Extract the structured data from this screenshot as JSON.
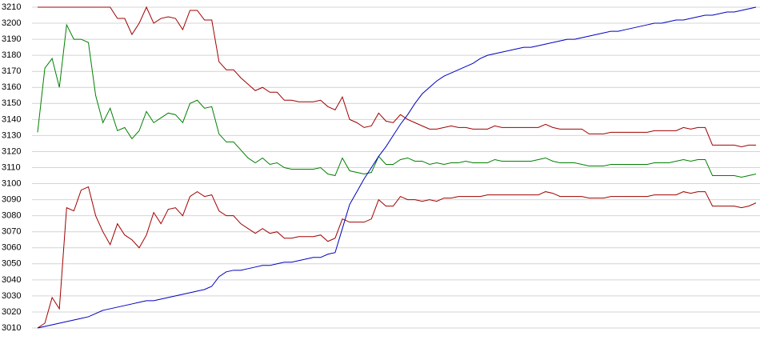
{
  "chart_data": {
    "type": "line",
    "ylim": [
      3010,
      3210
    ],
    "yticks": [
      3010,
      3020,
      3030,
      3040,
      3050,
      3060,
      3070,
      3080,
      3090,
      3100,
      3110,
      3120,
      3130,
      3140,
      3150,
      3160,
      3170,
      3180,
      3190,
      3200,
      3210
    ],
    "grid": true,
    "series": [
      {
        "color": "#a00000",
        "values": [
          3210,
          3210,
          3210,
          3210,
          3210,
          3210,
          3210,
          3210,
          3210,
          3210,
          3210,
          3203,
          3203,
          3193,
          3200,
          3210,
          3200,
          3203,
          3204,
          3203,
          3196,
          3208,
          3208,
          3202,
          3202,
          3176,
          3171,
          3171,
          3166,
          3162,
          3158,
          3160,
          3157,
          3157,
          3152,
          3152,
          3151,
          3151,
          3151,
          3152,
          3148,
          3146,
          3154,
          3140,
          3138,
          3135,
          3136,
          3144,
          3139,
          3138,
          3143,
          3140,
          3138,
          3136,
          3134,
          3134,
          3135,
          3136,
          3135,
          3135,
          3134,
          3134,
          3134,
          3136,
          3135,
          3135,
          3135,
          3135,
          3135,
          3135,
          3137,
          3135,
          3134,
          3134,
          3134,
          3134,
          3131,
          3131,
          3131,
          3132,
          3132,
          3132,
          3132,
          3132,
          3132,
          3133,
          3133,
          3133,
          3133,
          3135,
          3134,
          3135,
          3135,
          3124,
          3124,
          3124,
          3124,
          3123,
          3124,
          3124
        ]
      },
      {
        "color": "#008000",
        "values": [
          3132,
          3172,
          3178,
          3160,
          3199,
          3190,
          3190,
          3188,
          3155,
          3138,
          3147,
          3133,
          3135,
          3128,
          3133,
          3145,
          3138,
          3141,
          3144,
          3143,
          3138,
          3150,
          3152,
          3147,
          3148,
          3131,
          3126,
          3126,
          3121,
          3116,
          3113,
          3116,
          3112,
          3113,
          3110,
          3109,
          3109,
          3109,
          3109,
          3110,
          3106,
          3105,
          3116,
          3108,
          3107,
          3106,
          3107,
          3117,
          3112,
          3112,
          3115,
          3116,
          3114,
          3114,
          3112,
          3113,
          3112,
          3113,
          3113,
          3114,
          3113,
          3113,
          3113,
          3115,
          3114,
          3114,
          3114,
          3114,
          3114,
          3115,
          3116,
          3114,
          3113,
          3113,
          3113,
          3112,
          3111,
          3111,
          3111,
          3112,
          3112,
          3112,
          3112,
          3112,
          3112,
          3113,
          3113,
          3113,
          3114,
          3115,
          3114,
          3115,
          3115,
          3105,
          3105,
          3105,
          3105,
          3104,
          3105,
          3106
        ]
      },
      {
        "color": "#a00000",
        "values": [
          3010,
          3013,
          3029,
          3022,
          3085,
          3083,
          3096,
          3098,
          3080,
          3070,
          3062,
          3075,
          3068,
          3065,
          3060,
          3068,
          3082,
          3075,
          3084,
          3085,
          3080,
          3092,
          3095,
          3092,
          3093,
          3083,
          3080,
          3080,
          3075,
          3072,
          3069,
          3072,
          3069,
          3070,
          3066,
          3066,
          3067,
          3067,
          3067,
          3068,
          3064,
          3066,
          3078,
          3076,
          3076,
          3076,
          3078,
          3090,
          3086,
          3086,
          3092,
          3090,
          3090,
          3089,
          3090,
          3089,
          3091,
          3091,
          3092,
          3092,
          3092,
          3092,
          3093,
          3093,
          3093,
          3093,
          3093,
          3093,
          3093,
          3093,
          3095,
          3094,
          3092,
          3092,
          3092,
          3092,
          3091,
          3091,
          3091,
          3092,
          3092,
          3092,
          3092,
          3092,
          3092,
          3093,
          3093,
          3093,
          3093,
          3095,
          3094,
          3095,
          3095,
          3086,
          3086,
          3086,
          3086,
          3085,
          3086,
          3088
        ]
      },
      {
        "color": "#0000c0",
        "values": [
          3010,
          3011,
          3012,
          3013,
          3014,
          3015,
          3016,
          3017,
          3019,
          3021,
          3022,
          3023,
          3024,
          3025,
          3026,
          3027,
          3027,
          3028,
          3029,
          3030,
          3031,
          3032,
          3033,
          3034,
          3036,
          3042,
          3045,
          3046,
          3046,
          3047,
          3048,
          3049,
          3049,
          3050,
          3051,
          3051,
          3052,
          3053,
          3054,
          3054,
          3056,
          3057,
          3072,
          3087,
          3095,
          3103,
          3110,
          3117,
          3123,
          3130,
          3137,
          3143,
          3150,
          3156,
          3160,
          3164,
          3167,
          3169,
          3171,
          3173,
          3175,
          3178,
          3180,
          3181,
          3182,
          3183,
          3184,
          3185,
          3185,
          3186,
          3187,
          3188,
          3189,
          3190,
          3190,
          3191,
          3192,
          3193,
          3194,
          3195,
          3195,
          3196,
          3197,
          3198,
          3199,
          3200,
          3200,
          3201,
          3202,
          3202,
          3203,
          3204,
          3205,
          3205,
          3206,
          3207,
          3207,
          3208,
          3209,
          3210
        ]
      }
    ]
  }
}
